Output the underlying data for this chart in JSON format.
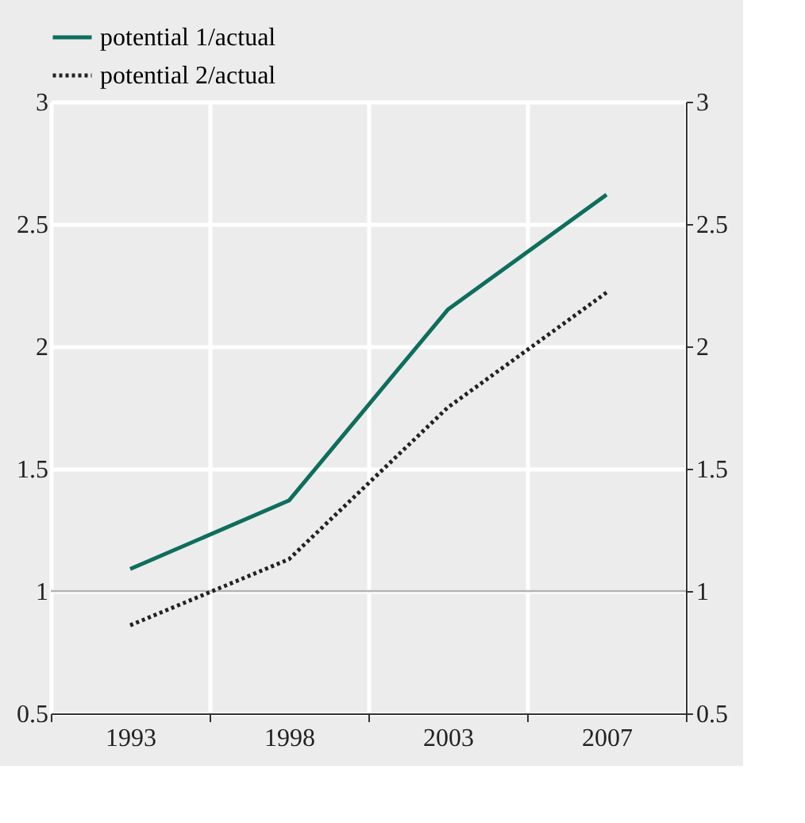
{
  "chart_data": {
    "type": "line",
    "categories": [
      "1993",
      "1998",
      "2003",
      "2007"
    ],
    "series": [
      {
        "name": "potential 1/actual",
        "color": "#0e6e5e",
        "line_style": "solid",
        "values": [
          1.09,
          1.37,
          2.15,
          2.62
        ]
      },
      {
        "name": "potential 2/actual",
        "color": "#222222",
        "line_style": "dotted",
        "values": [
          0.86,
          1.13,
          1.75,
          2.22
        ]
      }
    ],
    "ylim": [
      0.5,
      3
    ],
    "yticks": [
      0.5,
      1,
      1.5,
      2,
      2.5,
      3
    ],
    "y2lim": [
      0.5,
      3
    ],
    "y2ticks": [
      0.5,
      1,
      1.5,
      2,
      2.5,
      3
    ],
    "ref_lines": [
      {
        "axis": "y",
        "value": 1,
        "color": "#b4b4b4"
      }
    ],
    "grid": true,
    "legend": "top left",
    "marker": "none"
  }
}
